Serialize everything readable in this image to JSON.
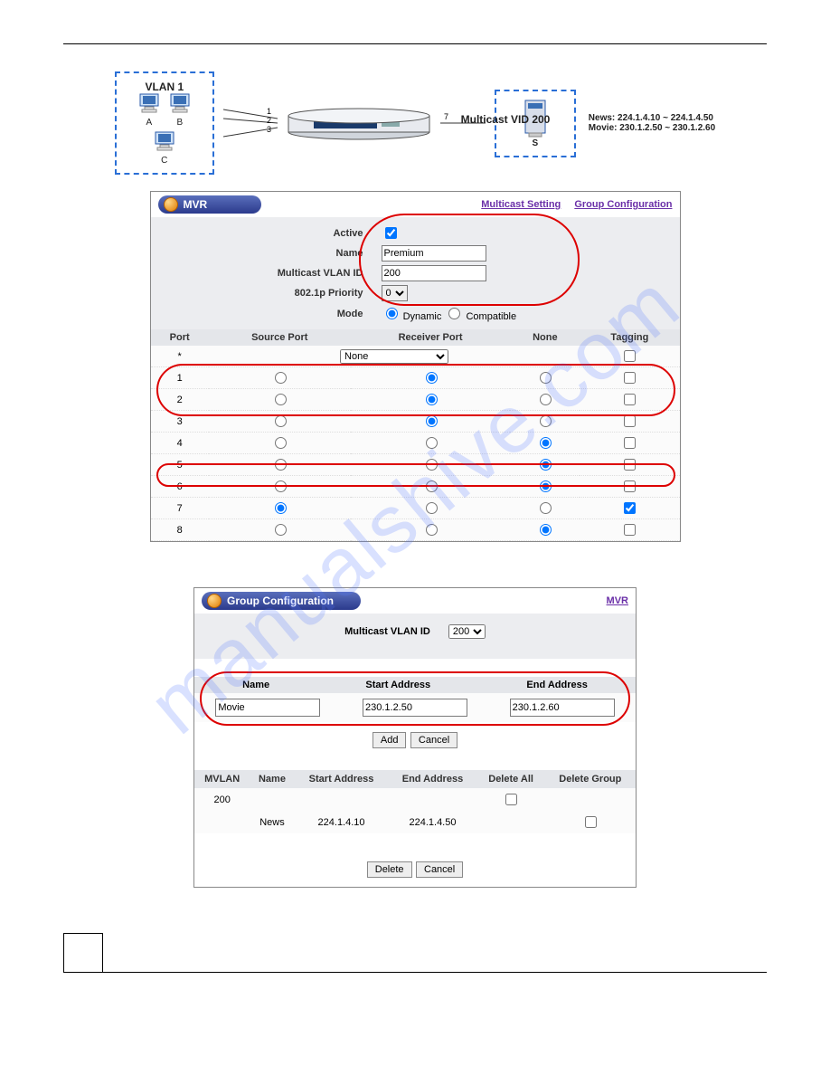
{
  "diagram": {
    "vlan_label": "VLAN 1",
    "host_a": "A",
    "host_b": "B",
    "host_c": "C",
    "port1": "1",
    "port2": "2",
    "port3": "3",
    "port7": "7",
    "mvid_label": "Multicast VID 200",
    "server_label": "S",
    "range1": "News: 224.1.4.10 ~ 224.1.4.50",
    "range2": "Movie: 230.1.2.50 ~ 230.1.2.60"
  },
  "mvr": {
    "title": "MVR",
    "link_multicast": "Multicast Setting",
    "link_group": "Group Configuration",
    "active_label": "Active",
    "active_checked": true,
    "name_label": "Name",
    "name_value": "Premium",
    "vlan_label": "Multicast VLAN ID",
    "vlan_value": "200",
    "priority_label": "802.1p Priority",
    "priority_value": "0",
    "mode_label": "Mode",
    "mode_dynamic": "Dynamic",
    "mode_compatible": "Compatible",
    "col_port": "Port",
    "col_source": "Source Port",
    "col_receiver": "Receiver Port",
    "col_none": "None",
    "col_tagging": "Tagging",
    "star_row_selected": "None",
    "rows": [
      {
        "port": "1",
        "sel": "receiver",
        "tag": false
      },
      {
        "port": "2",
        "sel": "receiver",
        "tag": false
      },
      {
        "port": "3",
        "sel": "receiver",
        "tag": false
      },
      {
        "port": "4",
        "sel": "none",
        "tag": false
      },
      {
        "port": "5",
        "sel": "none",
        "tag": false
      },
      {
        "port": "6",
        "sel": "none",
        "tag": false
      },
      {
        "port": "7",
        "sel": "source",
        "tag": true
      },
      {
        "port": "8",
        "sel": "none",
        "tag": false
      }
    ],
    "colors": {
      "header_bg": "#2b3a8c",
      "link_color": "#6a2fa8",
      "oval": "#d00"
    }
  },
  "gc": {
    "title": "Group Configuration",
    "link_mvr": "MVR",
    "vlan_label": "Multicast VLAN ID",
    "vlan_value": "200",
    "col_name": "Name",
    "col_start": "Start Address",
    "col_end": "End Address",
    "name_value": "Movie",
    "start_value": "230.1.2.50",
    "end_value": "230.1.2.60",
    "btn_add": "Add",
    "btn_cancel": "Cancel",
    "btn_delete": "Delete",
    "t_mvlan": "MVLAN",
    "t_name": "Name",
    "t_start": "Start Address",
    "t_end": "End Address",
    "t_delall": "Delete All",
    "t_delgrp": "Delete Group",
    "rows": [
      {
        "mvlan": "200",
        "name": "",
        "start": "",
        "end": "",
        "delall": false,
        "delgrp": ""
      },
      {
        "mvlan": "",
        "name": "News",
        "start": "224.1.4.10",
        "end": "224.1.4.50",
        "delall": "",
        "delgrp": false
      }
    ]
  }
}
